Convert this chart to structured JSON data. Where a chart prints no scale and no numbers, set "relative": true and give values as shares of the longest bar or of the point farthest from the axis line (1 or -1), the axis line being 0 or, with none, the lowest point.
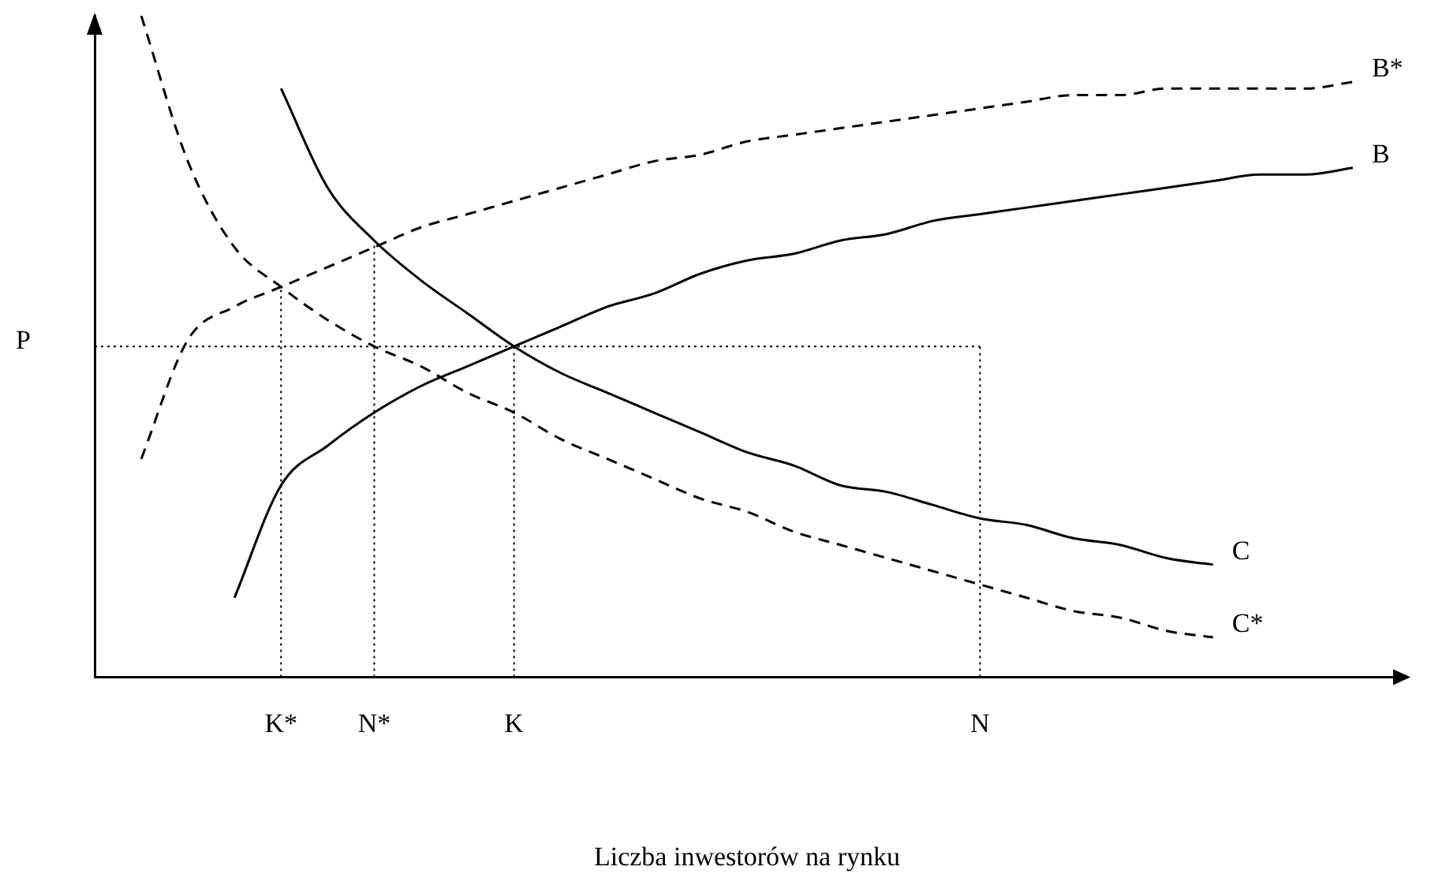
{
  "chart_data": {
    "type": "line",
    "relative": true,
    "xlabel": "Liczba inwestorów na rynku",
    "tick_labels": "x",
    "grid": false,
    "legend": false,
    "marker": "none",
    "categories": [
      null,
      null,
      null,
      null,
      "K*",
      null,
      "N*",
      null,
      null,
      "K",
      null,
      null,
      null,
      null,
      null,
      null,
      null,
      null,
      null,
      "N",
      null,
      null,
      null,
      null,
      null,
      null,
      null,
      null,
      null
    ],
    "series": [
      {
        "name": "B*",
        "color": "#000000",
        "line_style": "dashed",
        "values": [
          null,
          0.33,
          0.51,
          0.56,
          0.59,
          0.62,
          0.65,
          0.68,
          0.7,
          0.72,
          0.74,
          0.76,
          0.78,
          0.79,
          0.81,
          0.82,
          0.83,
          0.84,
          0.85,
          0.86,
          0.87,
          0.88,
          0.88,
          0.89,
          0.89,
          0.89,
          0.89,
          0.9,
          null
        ]
      },
      {
        "name": "B",
        "color": "#000000",
        "line_style": "solid",
        "values": [
          null,
          null,
          null,
          0.12,
          0.29,
          0.35,
          0.4,
          0.44,
          0.47,
          0.5,
          0.53,
          0.56,
          0.58,
          0.61,
          0.63,
          0.64,
          0.66,
          0.67,
          0.69,
          0.7,
          0.71,
          0.72,
          0.73,
          0.74,
          0.75,
          0.76,
          0.76,
          0.77,
          null
        ]
      },
      {
        "name": "C",
        "color": "#000000",
        "line_style": "solid",
        "values": [
          null,
          null,
          null,
          null,
          0.89,
          0.74,
          0.66,
          0.6,
          0.55,
          0.5,
          0.46,
          0.43,
          0.4,
          0.37,
          0.34,
          0.32,
          0.29,
          0.28,
          0.26,
          0.24,
          0.23,
          0.21,
          0.2,
          0.18,
          0.17,
          null,
          null,
          null,
          null
        ]
      },
      {
        "name": "C*",
        "color": "#000000",
        "line_style": "dashed",
        "values": [
          null,
          1.0,
          0.78,
          0.65,
          0.59,
          0.54,
          0.5,
          0.47,
          0.43,
          0.4,
          0.36,
          0.33,
          0.3,
          0.27,
          0.25,
          0.22,
          0.2,
          0.18,
          0.16,
          0.14,
          0.12,
          0.1,
          0.09,
          0.07,
          0.06,
          null,
          null,
          null,
          null
        ]
      }
    ],
    "ref_lines": [
      {
        "axis": "y",
        "value": 0.5,
        "label": "P",
        "color": "#000000",
        "line_style": "dotted"
      },
      {
        "axis": "x",
        "value": "K*",
        "color": "#000000",
        "line_style": "dotted"
      },
      {
        "axis": "x",
        "value": "N*",
        "color": "#000000",
        "line_style": "dotted"
      },
      {
        "axis": "x",
        "value": "K",
        "color": "#000000",
        "line_style": "dotted"
      },
      {
        "axis": "x",
        "value": "N",
        "color": "#000000",
        "line_style": "dotted"
      }
    ]
  }
}
